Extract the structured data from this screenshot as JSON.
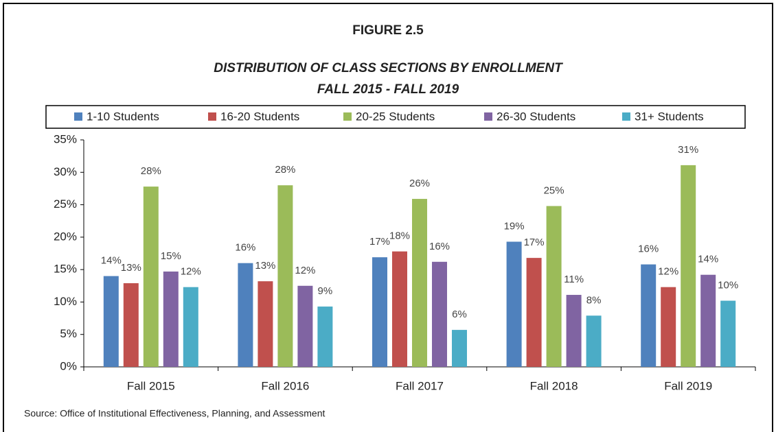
{
  "chart_data": {
    "type": "bar",
    "title": "FIGURE 2.5",
    "subtitle": [
      "DISTRIBUTION OF CLASS SECTIONS BY ENROLLMENT",
      "FALL 2015 - FALL 2019"
    ],
    "source": "Source: Office of Institutional Effectiveness, Planning, and Assessment",
    "categories": [
      "Fall 2015",
      "Fall 2016",
      "Fall 2017",
      "Fall 2018",
      "Fall 2019"
    ],
    "series": [
      {
        "name": "1-10 Students",
        "color": "#4f81bd",
        "values": [
          14.0,
          16.0,
          16.9,
          19.3,
          15.8
        ],
        "value_labels": [
          "14%",
          "16%",
          "17%",
          "19%",
          "16%"
        ]
      },
      {
        "name": "16-20 Students",
        "color": "#c0504d",
        "values": [
          12.9,
          13.2,
          17.8,
          16.8,
          12.3
        ],
        "value_labels": [
          "13%",
          "13%",
          "18%",
          "17%",
          "12%"
        ]
      },
      {
        "name": "20-25 Students",
        "color": "#9bbb59",
        "values": [
          27.8,
          28.0,
          25.9,
          24.8,
          31.1
        ],
        "value_labels": [
          "28%",
          "28%",
          "26%",
          "25%",
          "31%"
        ]
      },
      {
        "name": "26-30 Students",
        "color": "#8064a2",
        "values": [
          14.7,
          12.5,
          16.2,
          11.1,
          14.2
        ],
        "value_labels": [
          "15%",
          "12%",
          "16%",
          "11%",
          "14%"
        ]
      },
      {
        "name": "31+ Students",
        "color": "#4bacc6",
        "values": [
          12.3,
          9.3,
          5.7,
          7.9,
          10.2
        ],
        "value_labels": [
          "12%",
          "9%",
          "6%",
          "8%",
          "10%"
        ]
      }
    ],
    "ylim": [
      0,
      35
    ],
    "yticks": [
      {
        "value": 0,
        "label": "0%"
      },
      {
        "value": 5,
        "label": "5%"
      },
      {
        "value": 10,
        "label": "10%"
      },
      {
        "value": 15,
        "label": "15%"
      },
      {
        "value": 20,
        "label": "20%"
      },
      {
        "value": 25,
        "label": "25%"
      },
      {
        "value": 30,
        "label": "30%"
      },
      {
        "value": 35,
        "label": "35%"
      }
    ],
    "grid": false,
    "legend": "top"
  }
}
